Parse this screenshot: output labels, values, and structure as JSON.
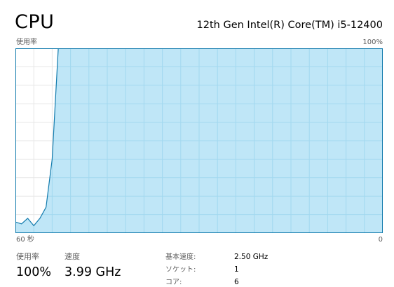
{
  "header": {
    "title": "CPU",
    "processor": "12th Gen Intel(R) Core(TM) i5-12400"
  },
  "graph": {
    "top_left_label": "使用率",
    "top_right_label": "100%",
    "bottom_left_label": "60 秒",
    "bottom_right_label": "0"
  },
  "stats": {
    "usage_caption": "使用率",
    "usage_value": "100%",
    "speed_caption": "速度",
    "speed_value": "3.99 GHz"
  },
  "info": {
    "rows": [
      {
        "label": "基本速度:",
        "value": "2.50 GHz"
      },
      {
        "label": "ソケット:",
        "value": "1"
      },
      {
        "label": "コア:",
        "value": "6"
      }
    ]
  },
  "colors": {
    "fill": "#bfe6f7",
    "line": "#127bad",
    "grid": "#a2d8ef",
    "border": "#127bad",
    "background": "#ffffff",
    "grid_on_white": "#e6e6e6"
  },
  "chart_data": {
    "type": "area",
    "title": "",
    "xlabel": "",
    "ylabel": "使用率",
    "xlim": [
      60,
      0
    ],
    "ylim": [
      0,
      100
    ],
    "grid": true,
    "x": [
      60,
      59,
      58,
      57,
      56,
      55,
      54,
      53,
      52,
      51,
      50,
      49,
      48,
      47,
      46,
      45,
      44,
      43,
      42,
      41,
      40,
      39,
      38,
      37,
      36,
      35,
      34,
      33,
      32,
      31,
      30,
      29,
      28,
      27,
      26,
      25,
      24,
      23,
      22,
      21,
      20,
      19,
      18,
      17,
      16,
      15,
      14,
      13,
      12,
      11,
      10,
      9,
      8,
      7,
      6,
      5,
      4,
      3,
      2,
      1,
      0
    ],
    "series": [
      {
        "values": [
          6,
          5,
          8,
          4,
          8,
          14,
          40,
          100,
          100,
          100,
          100,
          100,
          100,
          100,
          100,
          100,
          100,
          100,
          100,
          100,
          100,
          100,
          100,
          100,
          100,
          100,
          100,
          100,
          100,
          100,
          100,
          100,
          100,
          100,
          100,
          100,
          100,
          100,
          100,
          100,
          100,
          100,
          100,
          100,
          100,
          100,
          100,
          100,
          100,
          100,
          100,
          100,
          100,
          100,
          100,
          100,
          100,
          100,
          100,
          100,
          100
        ]
      }
    ]
  }
}
